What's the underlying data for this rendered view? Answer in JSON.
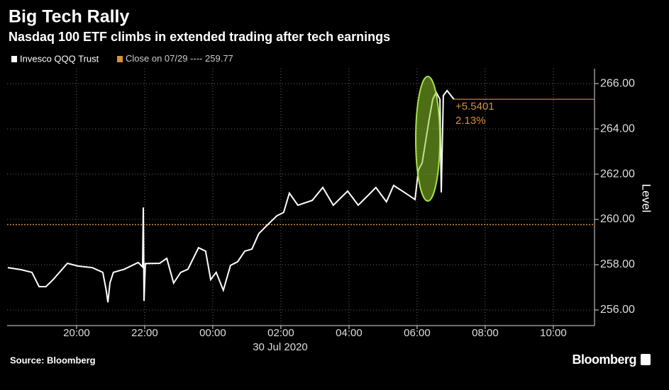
{
  "chart_data": {
    "type": "line",
    "title": "Big Tech Rally",
    "subtitle": "Nasdaq 100 ETF climbs in extended trading after tech earnings",
    "y_axis_label": "Level",
    "date_label": "30 Jul 2020",
    "source": "Source: Bloomberg",
    "brand": "Bloomberg",
    "reference": {
      "name": "Close on 07/29 ----",
      "value": 259.77,
      "color": "#d4923a"
    },
    "annotations": [
      "+5.5401",
      "2.13%"
    ],
    "grid": true,
    "xlim": [
      -6.04,
      11.21
    ],
    "ylim": [
      255.31,
      266.66
    ],
    "xticks": [
      {
        "value": -4,
        "label": "20:00"
      },
      {
        "value": -2,
        "label": "22:00"
      },
      {
        "value": 0,
        "label": "00:00"
      },
      {
        "value": 2,
        "label": "02:00"
      },
      {
        "value": 4,
        "label": "04:00"
      },
      {
        "value": 6,
        "label": "06:00"
      },
      {
        "value": 8,
        "label": "08:00"
      },
      {
        "value": 10,
        "label": "10:00"
      }
    ],
    "yticks": [
      {
        "value": 256,
        "label": "256.00"
      },
      {
        "value": 258,
        "label": "258.00"
      },
      {
        "value": 260,
        "label": "260.00"
      },
      {
        "value": 262,
        "label": "262.00"
      },
      {
        "value": 264,
        "label": "264.00"
      },
      {
        "value": 266,
        "label": "266.00"
      }
    ],
    "x": [
      -6.02,
      -5.63,
      -5.31,
      -5.1,
      -4.9,
      -4.69,
      -4.27,
      -3.96,
      -3.54,
      -3.23,
      -3.13,
      -3.08,
      -3.02,
      -2.92,
      -2.6,
      -2.19,
      -2.06,
      -2.04,
      -2.02,
      -1.98,
      -1.56,
      -1.35,
      -1.15,
      -0.94,
      -0.73,
      -0.42,
      -0.21,
      -0.06,
      0.1,
      0.31,
      0.52,
      0.73,
      0.94,
      1.15,
      1.35,
      1.56,
      1.88,
      2.08,
      2.25,
      2.5,
      2.92,
      3.23,
      3.54,
      3.96,
      4.27,
      4.58,
      4.79,
      5.1,
      5.31,
      5.63,
      5.94,
      6.04,
      6.15,
      6.25,
      6.35,
      6.46,
      6.56,
      6.67,
      6.71,
      6.77,
      6.88,
      7.08
    ],
    "series": [
      {
        "name": "Invesco QQQ Trust",
        "color": "#ffffff",
        "values": [
          257.87,
          257.78,
          257.66,
          257.03,
          257.03,
          257.34,
          258.06,
          257.94,
          257.87,
          257.66,
          256.87,
          256.34,
          257.2,
          257.66,
          257.8,
          258.1,
          257.9,
          260.53,
          256.4,
          258.05,
          258.06,
          258.28,
          257.19,
          257.66,
          257.8,
          258.75,
          258.6,
          257.34,
          257.66,
          256.87,
          257.97,
          258.13,
          258.6,
          258.69,
          259.37,
          259.69,
          260.16,
          260.31,
          261.16,
          260.63,
          260.84,
          261.41,
          260.63,
          261.25,
          260.63,
          261.09,
          261.41,
          260.78,
          261.5,
          261.19,
          260.88,
          262.19,
          262.5,
          263.44,
          264.38,
          265.31,
          265.62,
          265.31,
          261.19,
          265.47,
          265.69,
          265.31
        ]
      }
    ]
  }
}
